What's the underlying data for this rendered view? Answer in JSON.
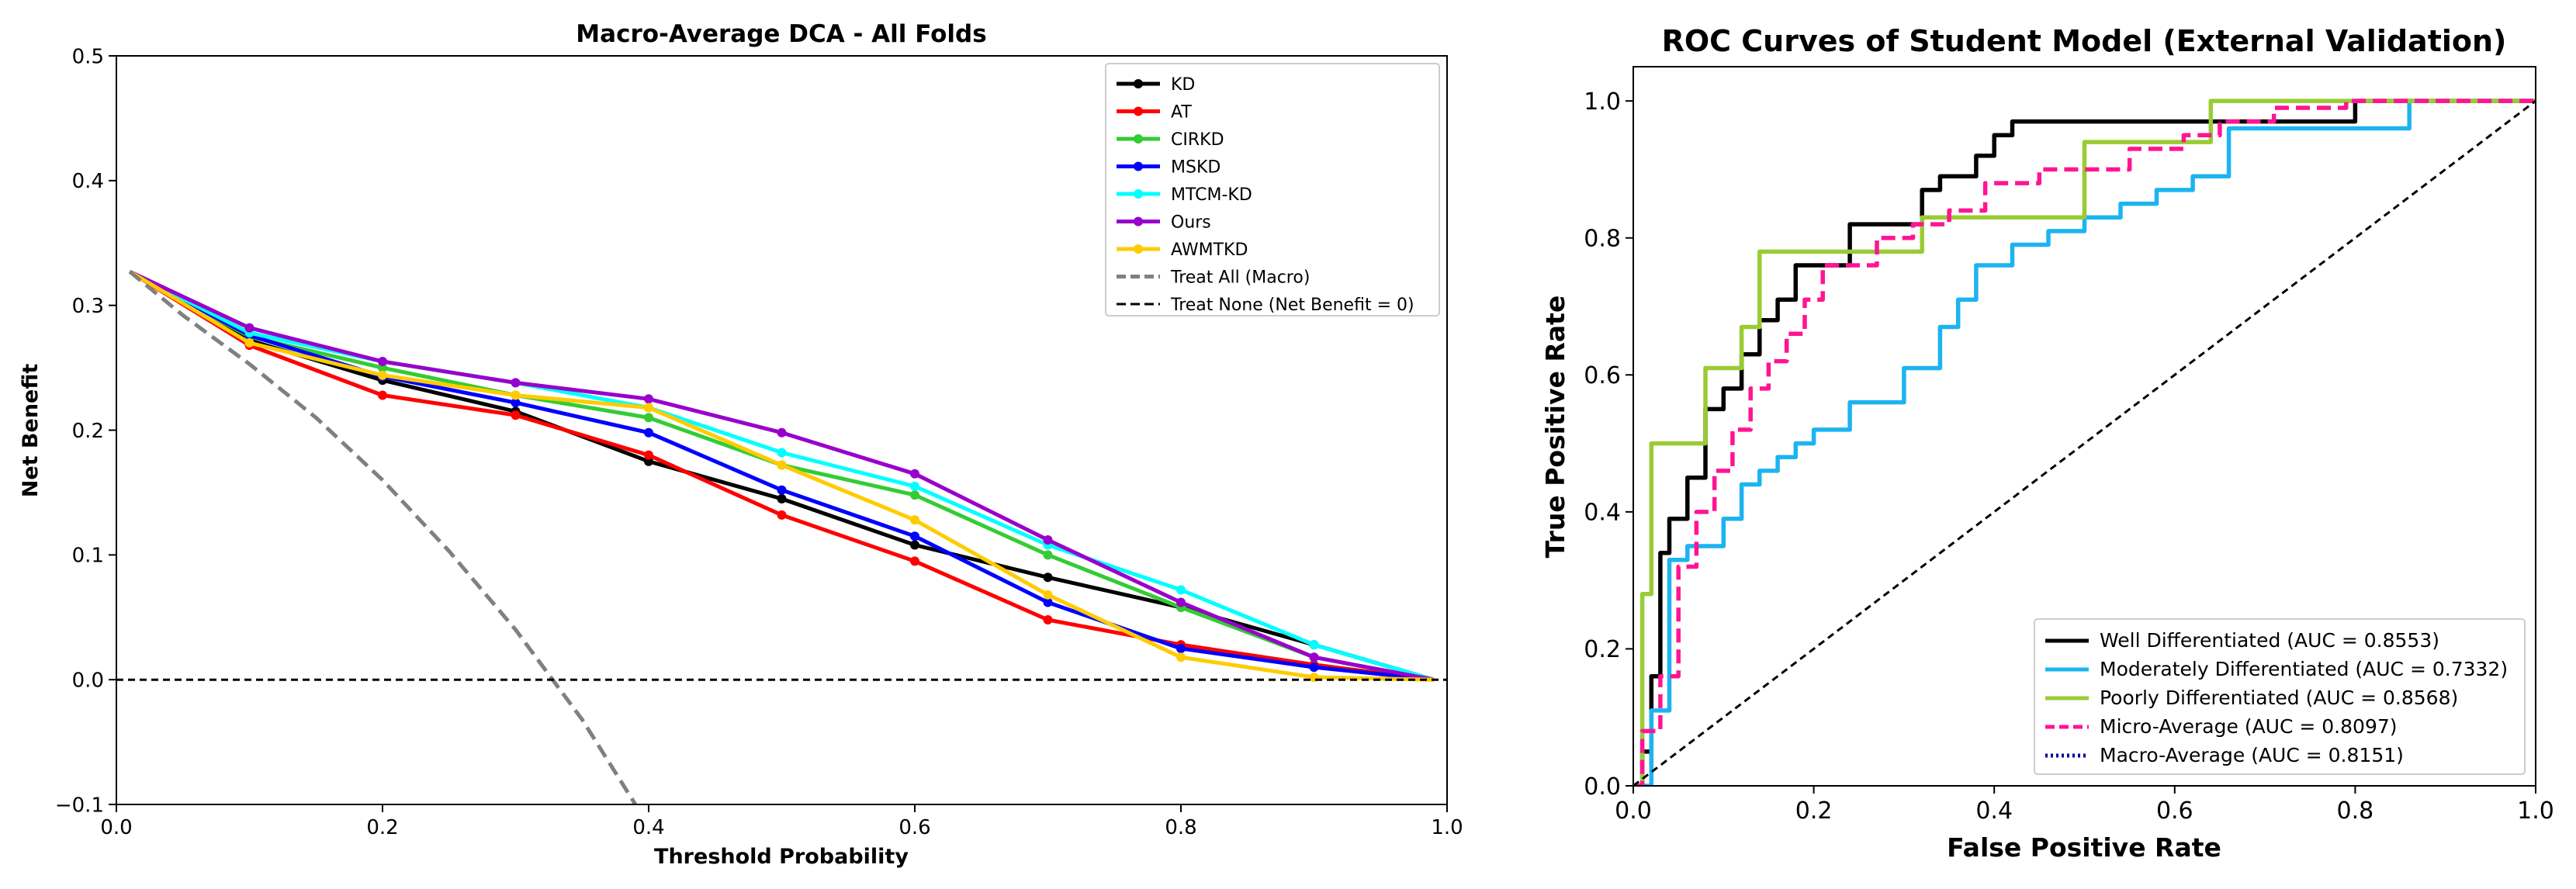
{
  "chart_data": [
    {
      "type": "line",
      "title": "Macro-Average DCA - All Folds",
      "xlabel": "Threshold Probability",
      "ylabel": "Net Benefit",
      "xlim": [
        0.0,
        1.0
      ],
      "ylim": [
        -0.1,
        0.5
      ],
      "xticks": [
        "0.0",
        "0.2",
        "0.4",
        "0.6",
        "0.8",
        "1.0"
      ],
      "yticks": [
        "−0.1",
        "0.0",
        "0.1",
        "0.2",
        "0.3",
        "0.4",
        "0.5"
      ],
      "grid": false,
      "legend_position": "top-right",
      "series": [
        {
          "name": "KD",
          "color": "#000000",
          "x": [
            0.01,
            0.1,
            0.2,
            0.3,
            0.4,
            0.5,
            0.6,
            0.7,
            0.8,
            0.9,
            0.99
          ],
          "y": [
            0.327,
            0.272,
            0.24,
            0.215,
            0.175,
            0.145,
            0.108,
            0.082,
            0.058,
            0.028,
            0.0
          ]
        },
        {
          "name": "AT",
          "color": "#ff0000",
          "x": [
            0.01,
            0.1,
            0.2,
            0.3,
            0.4,
            0.5,
            0.6,
            0.7,
            0.8,
            0.9,
            0.99
          ],
          "y": [
            0.327,
            0.268,
            0.228,
            0.212,
            0.18,
            0.132,
            0.095,
            0.048,
            0.028,
            0.012,
            0.0
          ]
        },
        {
          "name": "CIRKD",
          "color": "#33cc33",
          "x": [
            0.01,
            0.1,
            0.2,
            0.3,
            0.4,
            0.5,
            0.6,
            0.7,
            0.8,
            0.9,
            0.99
          ],
          "y": [
            0.327,
            0.275,
            0.25,
            0.228,
            0.21,
            0.172,
            0.148,
            0.1,
            0.058,
            0.018,
            0.0
          ]
        },
        {
          "name": "MSKD",
          "color": "#0000ff",
          "x": [
            0.01,
            0.1,
            0.2,
            0.3,
            0.4,
            0.5,
            0.6,
            0.7,
            0.8,
            0.9,
            0.99
          ],
          "y": [
            0.327,
            0.276,
            0.243,
            0.222,
            0.198,
            0.152,
            0.115,
            0.062,
            0.025,
            0.01,
            0.0
          ]
        },
        {
          "name": "MTCM-KD",
          "color": "#00ffff",
          "x": [
            0.01,
            0.1,
            0.2,
            0.3,
            0.4,
            0.5,
            0.6,
            0.7,
            0.8,
            0.9,
            0.99
          ],
          "y": [
            0.327,
            0.278,
            0.255,
            0.238,
            0.218,
            0.182,
            0.155,
            0.108,
            0.072,
            0.028,
            0.0
          ]
        },
        {
          "name": "Ours",
          "color": "#9900cc",
          "x": [
            0.01,
            0.1,
            0.2,
            0.3,
            0.4,
            0.5,
            0.6,
            0.7,
            0.8,
            0.9,
            0.99
          ],
          "y": [
            0.327,
            0.282,
            0.255,
            0.238,
            0.225,
            0.198,
            0.165,
            0.112,
            0.062,
            0.018,
            0.0
          ]
        },
        {
          "name": "AWMTKD",
          "color": "#ffcc00",
          "x": [
            0.01,
            0.1,
            0.2,
            0.3,
            0.4,
            0.5,
            0.6,
            0.7,
            0.8,
            0.9,
            0.99
          ],
          "y": [
            0.327,
            0.27,
            0.244,
            0.228,
            0.218,
            0.172,
            0.128,
            0.068,
            0.018,
            0.002,
            0.0
          ]
        },
        {
          "name": "Treat All (Macro)",
          "color": "#808080",
          "dash": "dash",
          "x": [
            0.01,
            0.05,
            0.1,
            0.15,
            0.2,
            0.25,
            0.3,
            0.35,
            0.39
          ],
          "y": [
            0.327,
            0.292,
            0.253,
            0.21,
            0.16,
            0.103,
            0.04,
            -0.032,
            -0.1
          ]
        },
        {
          "name": "Treat None (Net Benefit = 0)",
          "color": "#000000",
          "dash": "dash-fine",
          "x": [
            0.0,
            1.0
          ],
          "y": [
            0.0,
            0.0
          ]
        }
      ]
    },
    {
      "type": "line",
      "title": "ROC Curves of Student Model (External Validation)",
      "xlabel": "False Positive Rate",
      "ylabel": "True Positive Rate",
      "xlim": [
        0.0,
        1.0
      ],
      "ylim": [
        0.0,
        1.05
      ],
      "xticks": [
        "0.0",
        "0.2",
        "0.4",
        "0.6",
        "0.8",
        "1.0"
      ],
      "yticks": [
        "0.0",
        "0.2",
        "0.4",
        "0.6",
        "0.8",
        "1.0"
      ],
      "grid": false,
      "legend_position": "bottom-right",
      "series": [
        {
          "name": "Well Differentiated (AUC = 0.8553)",
          "color": "#000000",
          "steps": true,
          "x": [
            0,
            0.01,
            0.01,
            0.02,
            0.02,
            0.03,
            0.03,
            0.04,
            0.04,
            0.06,
            0.06,
            0.08,
            0.08,
            0.1,
            0.1,
            0.12,
            0.12,
            0.14,
            0.14,
            0.16,
            0.16,
            0.18,
            0.18,
            0.24,
            0.24,
            0.32,
            0.32,
            0.34,
            0.34,
            0.38,
            0.38,
            0.4,
            0.4,
            0.42,
            0.42,
            0.44,
            0.44,
            0.5,
            0.5,
            0.54,
            0.54,
            0.74,
            0.74,
            0.8,
            0.8,
            1.0
          ],
          "y": [
            0,
            0,
            0.05,
            0.05,
            0.16,
            0.16,
            0.34,
            0.34,
            0.39,
            0.39,
            0.45,
            0.45,
            0.55,
            0.55,
            0.58,
            0.58,
            0.63,
            0.63,
            0.68,
            0.68,
            0.71,
            0.71,
            0.76,
            0.76,
            0.82,
            0.82,
            0.87,
            0.87,
            0.89,
            0.89,
            0.92,
            0.92,
            0.95,
            0.95,
            0.97,
            0.97,
            0.97,
            0.97,
            0.97,
            0.97,
            0.97,
            0.97,
            0.97,
            0.97,
            1.0,
            1.0
          ]
        },
        {
          "name": "Moderately Differentiated (AUC = 0.7332)",
          "color": "#1cb4f0",
          "steps": true,
          "x": [
            0,
            0.02,
            0.02,
            0.04,
            0.04,
            0.06,
            0.06,
            0.1,
            0.1,
            0.12,
            0.12,
            0.14,
            0.14,
            0.16,
            0.16,
            0.18,
            0.18,
            0.2,
            0.2,
            0.24,
            0.24,
            0.3,
            0.3,
            0.34,
            0.34,
            0.36,
            0.36,
            0.38,
            0.38,
            0.42,
            0.42,
            0.46,
            0.46,
            0.5,
            0.5,
            0.54,
            0.54,
            0.58,
            0.58,
            0.62,
            0.62,
            0.66,
            0.66,
            0.72,
            0.72,
            0.86,
            0.86,
            1.0
          ],
          "y": [
            0,
            0,
            0.11,
            0.11,
            0.33,
            0.33,
            0.35,
            0.35,
            0.39,
            0.39,
            0.44,
            0.44,
            0.46,
            0.46,
            0.48,
            0.48,
            0.5,
            0.5,
            0.52,
            0.52,
            0.56,
            0.56,
            0.61,
            0.61,
            0.67,
            0.67,
            0.71,
            0.71,
            0.76,
            0.76,
            0.79,
            0.79,
            0.81,
            0.81,
            0.83,
            0.83,
            0.85,
            0.85,
            0.87,
            0.87,
            0.89,
            0.89,
            0.96,
            0.96,
            0.96,
            0.96,
            1.0,
            1.0
          ]
        },
        {
          "name": "Poorly Differentiated (AUC = 0.8568)",
          "color": "#99cc33",
          "steps": true,
          "x": [
            0,
            0.01,
            0.01,
            0.02,
            0.02,
            0.08,
            0.08,
            0.12,
            0.12,
            0.14,
            0.14,
            0.32,
            0.32,
            0.5,
            0.5,
            0.64,
            0.64,
            1.0
          ],
          "y": [
            0,
            0,
            0.28,
            0.28,
            0.5,
            0.5,
            0.61,
            0.61,
            0.67,
            0.67,
            0.78,
            0.78,
            0.83,
            0.83,
            0.94,
            0.94,
            1.0,
            1.0
          ]
        },
        {
          "name": "Micro-Average (AUC = 0.8097)",
          "color": "#ff1493",
          "dash": "dash",
          "steps": true,
          "x": [
            0,
            0.01,
            0.01,
            0.03,
            0.03,
            0.05,
            0.05,
            0.07,
            0.07,
            0.09,
            0.09,
            0.11,
            0.11,
            0.13,
            0.13,
            0.15,
            0.15,
            0.17,
            0.17,
            0.19,
            0.19,
            0.21,
            0.21,
            0.27,
            0.27,
            0.31,
            0.31,
            0.35,
            0.35,
            0.39,
            0.39,
            0.45,
            0.45,
            0.55,
            0.55,
            0.61,
            0.61,
            0.65,
            0.65,
            0.71,
            0.71,
            0.79,
            0.79,
            1.0
          ],
          "y": [
            0,
            0,
            0.08,
            0.08,
            0.16,
            0.16,
            0.32,
            0.32,
            0.4,
            0.4,
            0.46,
            0.46,
            0.52,
            0.52,
            0.58,
            0.58,
            0.62,
            0.62,
            0.66,
            0.66,
            0.71,
            0.71,
            0.76,
            0.76,
            0.8,
            0.8,
            0.82,
            0.82,
            0.84,
            0.84,
            0.88,
            0.88,
            0.9,
            0.9,
            0.93,
            0.93,
            0.95,
            0.95,
            0.97,
            0.97,
            0.99,
            0.99,
            1.0,
            1.0
          ]
        },
        {
          "name": "Macro-Average (AUC = 0.8151)",
          "color": "#000099",
          "dash": "dot",
          "x": [],
          "y": []
        },
        {
          "name": "",
          "color": "#000000",
          "dash": "dash-fine",
          "x": [
            0.0,
            1.0
          ],
          "y": [
            0.0,
            1.0
          ]
        }
      ]
    }
  ]
}
